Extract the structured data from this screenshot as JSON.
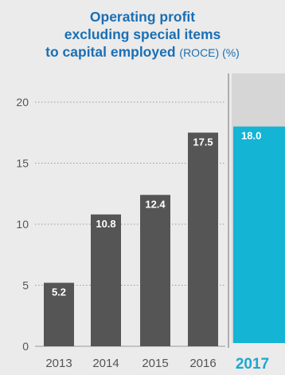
{
  "colors": {
    "background": "#ebebeb",
    "title": "#1a6fb4",
    "bar": "#555555",
    "highlight_bar": "#13b4d4",
    "highlight_bg": "#d6d6d6",
    "highlight_label": "#1aa9cf"
  },
  "chart_data": {
    "type": "bar",
    "title_line1": "Operating profit",
    "title_line2": "excluding special items",
    "title_line3_main": "to capital employed",
    "title_line3_sub": "(ROCE) (%)",
    "categories": [
      "2013",
      "2014",
      "2015",
      "2016",
      "2017"
    ],
    "values": [
      5.2,
      10.8,
      12.4,
      17.5,
      18.0
    ],
    "labels": [
      "5.2",
      "10.8",
      "12.4",
      "17.5",
      "18.0"
    ],
    "highlight_category": "2017",
    "ylim": [
      0,
      20
    ],
    "yticks": [
      "0",
      "5",
      "10",
      "15",
      "20"
    ],
    "grid": true,
    "legend": "none"
  }
}
